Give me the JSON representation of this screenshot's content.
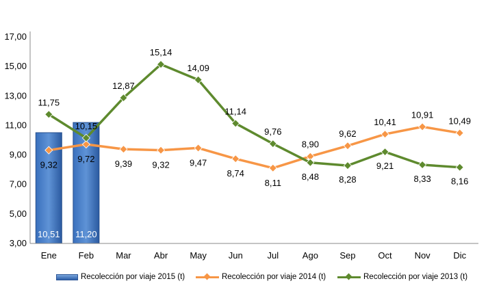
{
  "chart_data": {
    "type": "bar+line",
    "title": "",
    "xlabel": "",
    "ylabel": "",
    "categories": [
      "Ene",
      "Feb",
      "Mar",
      "Abr",
      "May",
      "Jun",
      "Jul",
      "Ago",
      "Sep",
      "Oct",
      "Nov",
      "Dic"
    ],
    "y_ticks": [
      "3,00",
      "5,00",
      "7,00",
      "9,00",
      "11,00",
      "13,00",
      "15,00",
      "17,00"
    ],
    "ylim": [
      3,
      17
    ],
    "grid": false,
    "legend_position": "bottom",
    "series": [
      {
        "name": "Recolección por viaje 2015 (t)",
        "type": "bar",
        "color": "#2e63ad",
        "values": [
          10.51,
          11.2,
          null,
          null,
          null,
          null,
          null,
          null,
          null,
          null,
          null,
          null
        ],
        "labels": [
          "10,51",
          "11,20",
          "",
          "",
          "",
          "",
          "",
          "",
          "",
          "",
          "",
          ""
        ]
      },
      {
        "name": "Recolección por viaje 2014 (t)",
        "type": "line",
        "color": "#f79646",
        "values": [
          9.32,
          9.72,
          9.39,
          9.32,
          9.47,
          8.74,
          8.11,
          8.9,
          9.62,
          10.41,
          10.91,
          10.49
        ],
        "labels": [
          "9,32",
          "9,72",
          "9,39",
          "9,32",
          "9,47",
          "8,74",
          "8,11",
          "8,90",
          "9,62",
          "10,41",
          "10,91",
          "10,49"
        ]
      },
      {
        "name": "Recolección por viaje 2013 (t)",
        "type": "line",
        "color": "#5e8a2e",
        "values": [
          11.75,
          10.15,
          12.87,
          15.14,
          14.09,
          11.14,
          9.76,
          8.48,
          8.28,
          9.21,
          8.33,
          8.16
        ],
        "labels": [
          "11,75",
          "10,15",
          "12,87",
          "15,14",
          "14,09",
          "11,14",
          "9,76",
          "8,48",
          "8,28",
          "9,21",
          "8,33",
          "8,16"
        ]
      }
    ]
  }
}
